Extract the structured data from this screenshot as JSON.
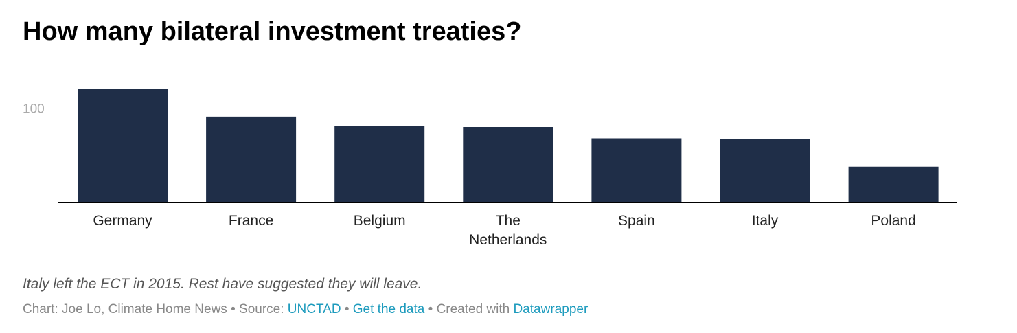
{
  "title": "How many bilateral investment treaties?",
  "notes": "Italy left the ECT in 2015. Rest have suggested they will leave.",
  "footer": {
    "chart_prefix": "Chart: ",
    "author": "Joe Lo, Climate Home News",
    "separator": " • ",
    "source_prefix": "Source: ",
    "source_link": "UNCTAD",
    "get_data": "Get the data",
    "created_prefix": "Created with ",
    "created_link": "Datawrapper"
  },
  "colors": {
    "bar": "#1f2e48",
    "gridline": "#dddddd",
    "baseline": "#000000",
    "tick_label": "#aaaaaa",
    "link": "#1d9bbd"
  },
  "chart_data": {
    "type": "bar",
    "categories": [
      "Germany",
      "France",
      "Belgium",
      "The Netherlands",
      "Spain",
      "Italy",
      "Poland"
    ],
    "values": [
      120,
      91,
      81,
      80,
      68,
      67,
      38
    ],
    "y_ticks": [
      100
    ],
    "y_tick_labels": [
      "100"
    ],
    "ylim": [
      0,
      120
    ],
    "grid": true,
    "title": "",
    "xlabel": "",
    "ylabel": ""
  }
}
